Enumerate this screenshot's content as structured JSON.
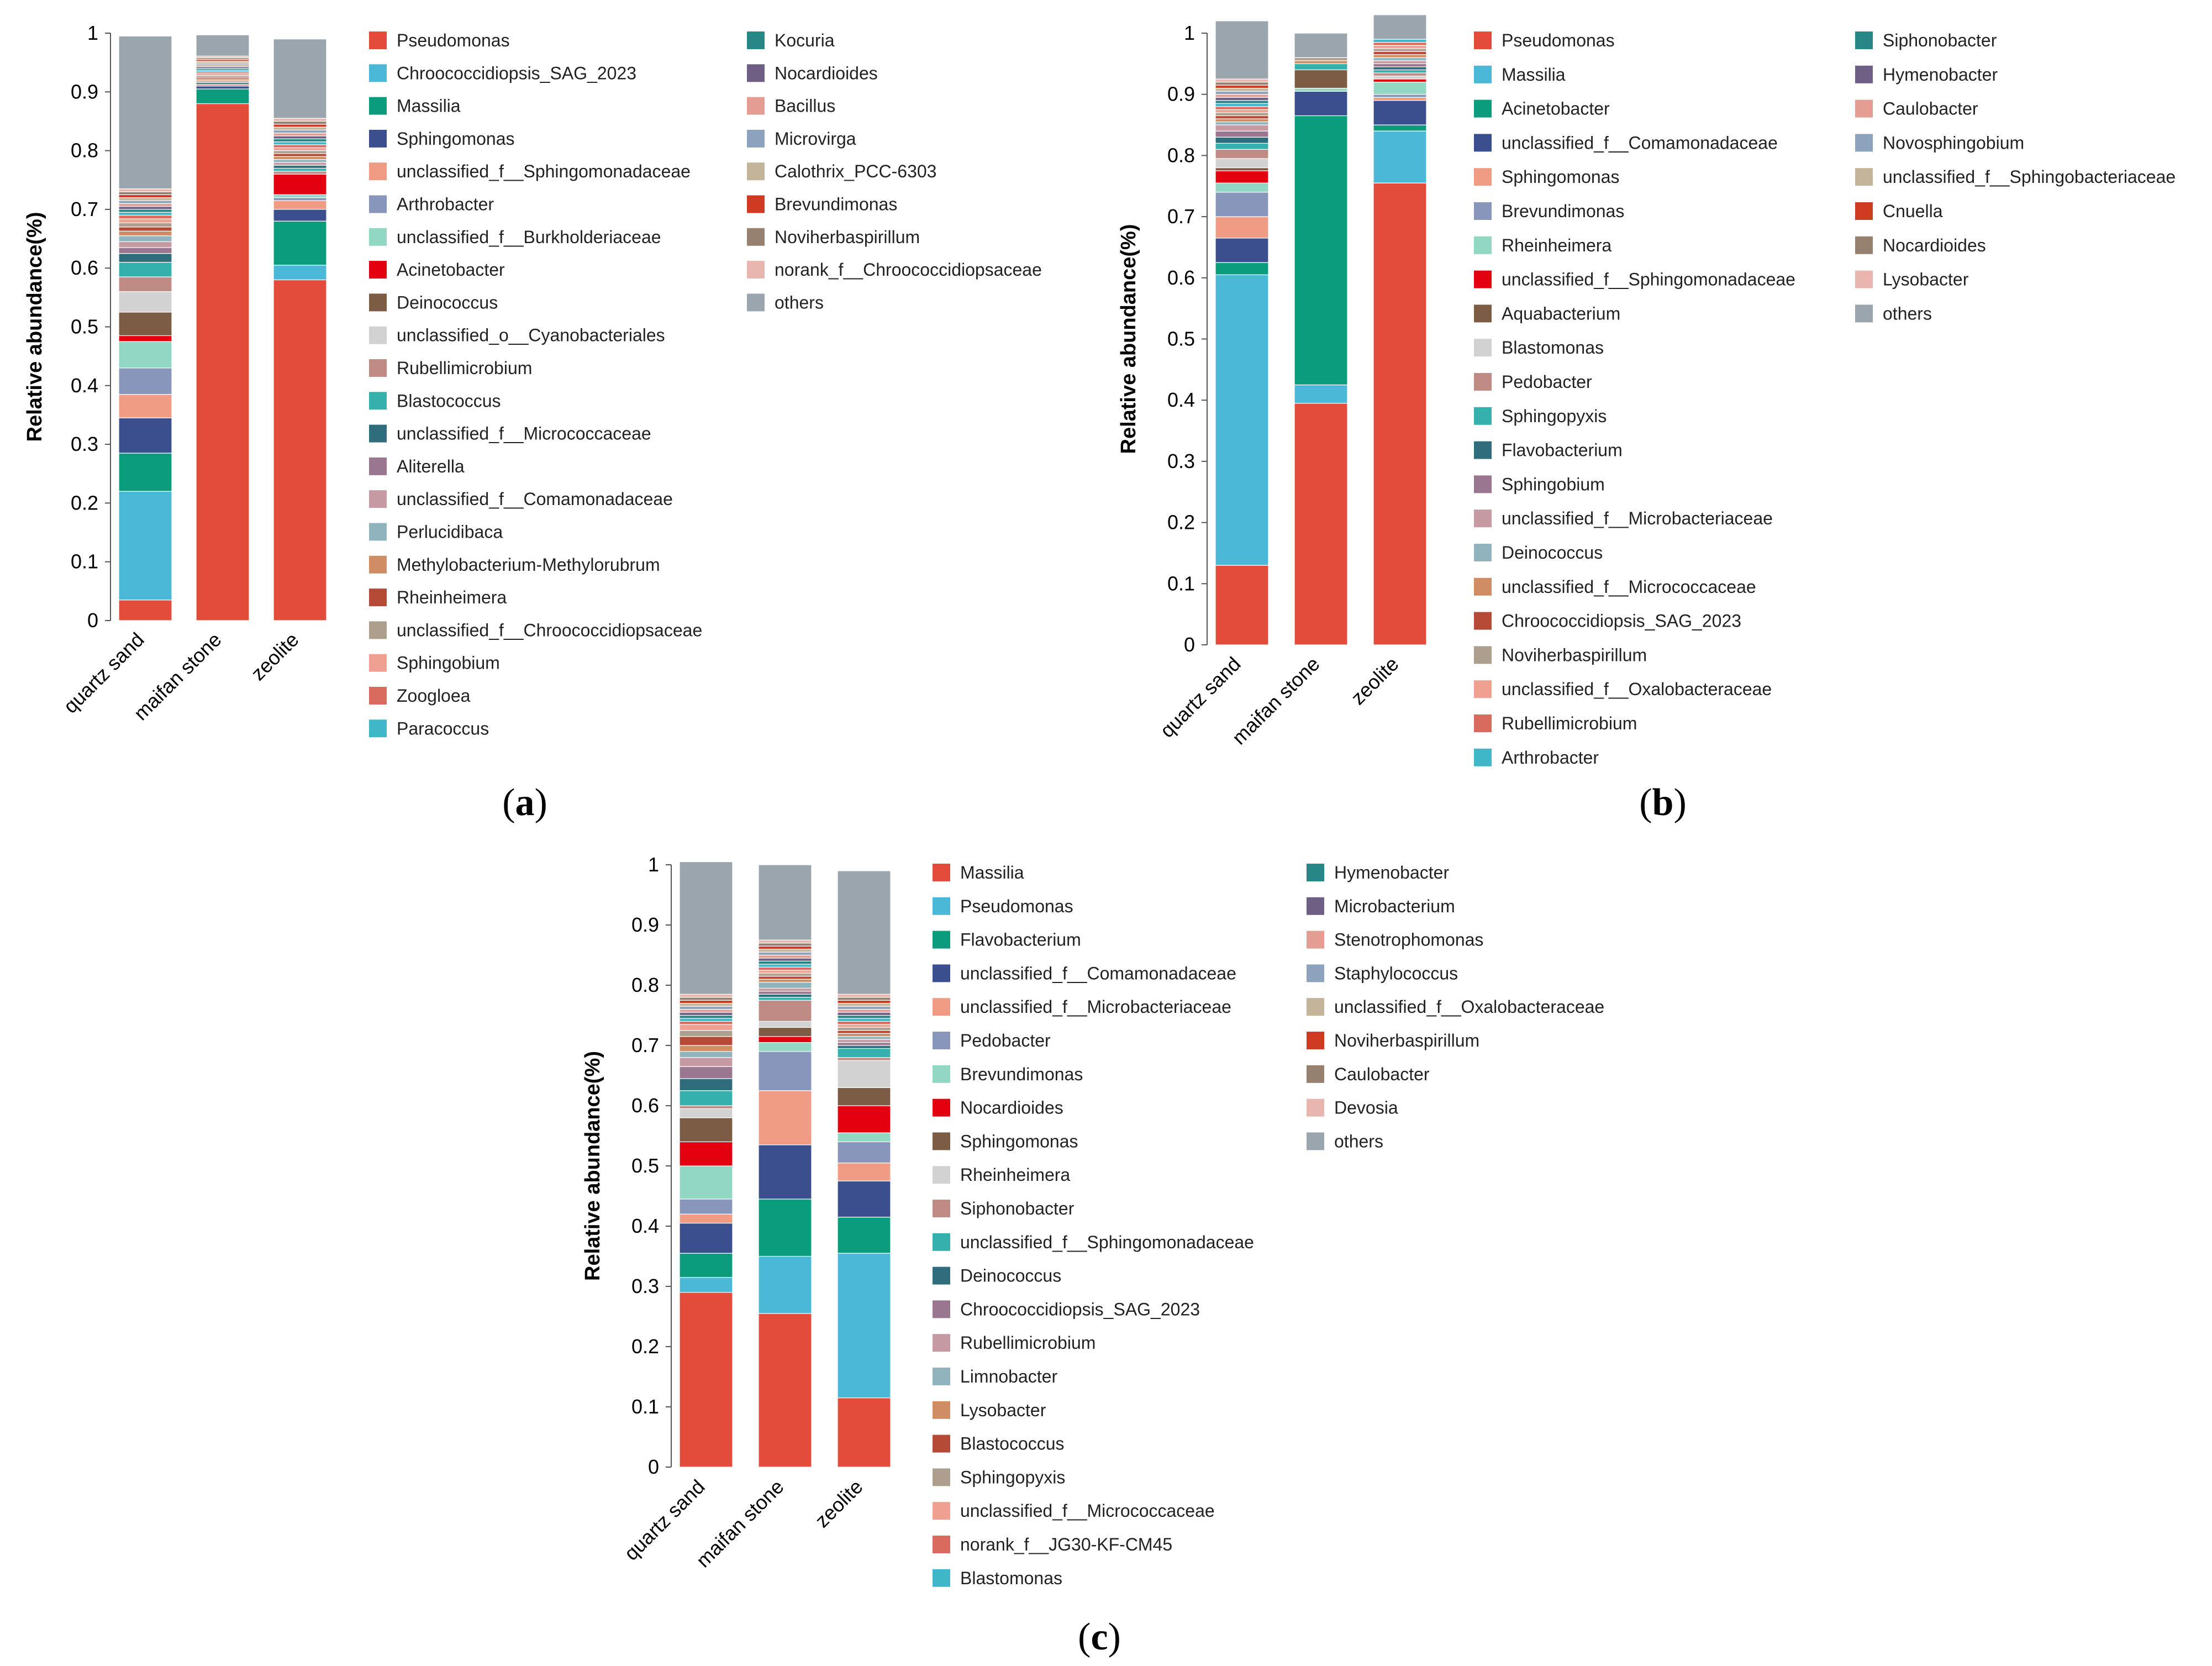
{
  "colors": {
    "others": "#9aa5ae",
    "palette": [
      "#e34c3a",
      "#4bb8d8",
      "#0b9c7e",
      "#3b4f8e",
      "#f09c84",
      "#8796ba",
      "#92d6c4",
      "#e3000f",
      "#7d5c45",
      "#d2d2d2",
      "#c08b84",
      "#35b0ac",
      "#2f6d7c",
      "#9b7690",
      "#c59aa2",
      "#91b3be",
      "#d08c62",
      "#b54a36",
      "#ad9e8e",
      "#f0a090",
      "#d86a5e",
      "#3fb7c8"
    ]
  },
  "chart_data": [
    {
      "panel": "a",
      "caption": "a",
      "type": "bar",
      "stacked": true,
      "ylabel": "Relative abundance(%)",
      "ylim": [
        0,
        1
      ],
      "yticks": [
        "0",
        "0.1",
        "0.2",
        "0.3",
        "0.4",
        "0.5",
        "0.6",
        "0.7",
        "0.8",
        "0.9",
        "1"
      ],
      "categories": [
        "quartz sand",
        "maifan stone",
        "zeolite"
      ],
      "series": [
        {
          "name": "Pseudomonas",
          "color": "#e34c3a",
          "values": [
            0.035,
            0.88,
            0.58
          ]
        },
        {
          "name": "Chroococcidiopsis_SAG_2023",
          "color": "#4bb8d8",
          "values": [
            0.185,
            0.0,
            0.025
          ]
        },
        {
          "name": "Massilia",
          "color": "#0b9c7e",
          "values": [
            0.065,
            0.025,
            0.075
          ]
        },
        {
          "name": "Sphingomonas",
          "color": "#3b4f8e",
          "values": [
            0.06,
            0.005,
            0.02
          ]
        },
        {
          "name": "unclassified_f__Sphingomonadaceae",
          "color": "#f09c84",
          "values": [
            0.04,
            0.0,
            0.015
          ]
        },
        {
          "name": "Arthrobacter",
          "color": "#8796ba",
          "values": [
            0.045,
            0.0,
            0.005
          ]
        },
        {
          "name": "unclassified_f__Burkholderiaceae",
          "color": "#92d6c4",
          "values": [
            0.045,
            0.0,
            0.005
          ]
        },
        {
          "name": "Acinetobacter",
          "color": "#e3000f",
          "values": [
            0.01,
            0.0,
            0.035
          ]
        },
        {
          "name": "Deinococcus",
          "color": "#7d5c45",
          "values": [
            0.04,
            0.0,
            0.0
          ]
        },
        {
          "name": "unclassified_o__Cyanobacteriales",
          "color": "#d2d2d2",
          "values": [
            0.035,
            0.0,
            0.0
          ]
        },
        {
          "name": "Rubellimicrobium",
          "color": "#c08b84",
          "values": [
            0.025,
            0.003,
            0.005
          ]
        },
        {
          "name": "Blastococcus",
          "color": "#35b0ac",
          "values": [
            0.025,
            0.0,
            0.005
          ]
        },
        {
          "name": "unclassified_f__Micrococcaceae",
          "color": "#2f6d7c",
          "values": [
            0.015,
            0.003,
            0.005
          ]
        },
        {
          "name": "Aliterella",
          "color": "#9b7690",
          "values": [
            0.01,
            0.0,
            0.0
          ]
        },
        {
          "name": "unclassified_f__Comamonadaceae",
          "color": "#c59aa2",
          "values": [
            0.01,
            0.003,
            0.005
          ]
        },
        {
          "name": "Perlucidibaca",
          "color": "#91b3be",
          "values": [
            0.01,
            0.0,
            0.005
          ]
        },
        {
          "name": "Methylobacterium-Methylorubrum",
          "color": "#d08c62",
          "values": [
            0.008,
            0.003,
            0.005
          ]
        },
        {
          "name": "Rheinheimera",
          "color": "#b54a36",
          "values": [
            0.007,
            0.003,
            0.005
          ]
        },
        {
          "name": "unclassified_f__Chroococcidiopsaceae",
          "color": "#ad9e8e",
          "values": [
            0.007,
            0.003,
            0.005
          ]
        },
        {
          "name": "Sphingobium",
          "color": "#f0a090",
          "values": [
            0.007,
            0.003,
            0.005
          ]
        },
        {
          "name": "Zoogloea",
          "color": "#d86a5e",
          "values": [
            0.006,
            0.003,
            0.005
          ]
        },
        {
          "name": "Paracoccus",
          "color": "#3fb7c8",
          "values": [
            0.005,
            0.003,
            0.005
          ]
        },
        {
          "name": "Kocuria",
          "color": "#268786",
          "values": [
            0.005,
            0.003,
            0.005
          ]
        },
        {
          "name": "Nocardioides",
          "color": "#6f5f84",
          "values": [
            0.005,
            0.003,
            0.005
          ]
        },
        {
          "name": "Bacillus",
          "color": "#e39d93",
          "values": [
            0.005,
            0.003,
            0.005
          ]
        },
        {
          "name": "Microvirga",
          "color": "#8da3bd",
          "values": [
            0.005,
            0.003,
            0.005
          ]
        },
        {
          "name": "Calothrix_PCC-6303",
          "color": "#c3b49a",
          "values": [
            0.005,
            0.003,
            0.005
          ]
        },
        {
          "name": "Brevundimonas",
          "color": "#cf3b22",
          "values": [
            0.005,
            0.003,
            0.005
          ]
        },
        {
          "name": "Noviherbaspirillum",
          "color": "#96806f",
          "values": [
            0.005,
            0.003,
            0.005
          ]
        },
        {
          "name": "norank_f__Chroococcidiopsaceae",
          "color": "#e8b6ae",
          "values": [
            0.005,
            0.003,
            0.005
          ]
        },
        {
          "name": "others",
          "color": "#9aa5ae",
          "values": [
            0.26,
            0.036,
            0.135
          ]
        }
      ]
    },
    {
      "panel": "b",
      "caption": "b",
      "type": "bar",
      "stacked": true,
      "ylabel": "Relative abundance(%)",
      "ylim": [
        0,
        1
      ],
      "yticks": [
        "0",
        "0.1",
        "0.2",
        "0.3",
        "0.4",
        "0.5",
        "0.6",
        "0.7",
        "0.8",
        "0.9",
        "1"
      ],
      "categories": [
        "quartz sand",
        "maifan stone",
        "zeolite"
      ],
      "series": [
        {
          "name": "Pseudomonas",
          "color": "#e34c3a",
          "values": [
            0.13,
            0.395,
            0.755
          ]
        },
        {
          "name": "Massilia",
          "color": "#4bb8d8",
          "values": [
            0.475,
            0.03,
            0.085
          ]
        },
        {
          "name": "Acinetobacter",
          "color": "#0b9c7e",
          "values": [
            0.02,
            0.44,
            0.01
          ]
        },
        {
          "name": "unclassified_f__Comamonadaceae",
          "color": "#3b4f8e",
          "values": [
            0.04,
            0.04,
            0.04
          ]
        },
        {
          "name": "Sphingomonas",
          "color": "#f09c84",
          "values": [
            0.035,
            0.0,
            0.005
          ]
        },
        {
          "name": "Brevundimonas",
          "color": "#8796ba",
          "values": [
            0.04,
            0.0,
            0.005
          ]
        },
        {
          "name": "Rheinheimera",
          "color": "#92d6c4",
          "values": [
            0.015,
            0.005,
            0.02
          ]
        },
        {
          "name": "unclassified_f__Sphingomonadaceae",
          "color": "#e3000f",
          "values": [
            0.02,
            0.0,
            0.005
          ]
        },
        {
          "name": "Aquabacterium",
          "color": "#7d5c45",
          "values": [
            0.005,
            0.03,
            0.0
          ]
        },
        {
          "name": "Blastomonas",
          "color": "#d2d2d2",
          "values": [
            0.015,
            0.0,
            0.005
          ]
        },
        {
          "name": "Pedobacter",
          "color": "#c08b84",
          "values": [
            0.015,
            0.0,
            0.005
          ]
        },
        {
          "name": "Sphingopyxis",
          "color": "#35b0ac",
          "values": [
            0.01,
            0.01,
            0.005
          ]
        },
        {
          "name": "Flavobacterium",
          "color": "#2f6d7c",
          "values": [
            0.01,
            0.0,
            0.005
          ]
        },
        {
          "name": "Sphingobium",
          "color": "#9b7690",
          "values": [
            0.01,
            0.0,
            0.005
          ]
        },
        {
          "name": "unclassified_f__Microbacteriaceae",
          "color": "#c59aa2",
          "values": [
            0.01,
            0.0,
            0.005
          ]
        },
        {
          "name": "Deinococcus",
          "color": "#91b3be",
          "values": [
            0.005,
            0.0,
            0.005
          ]
        },
        {
          "name": "unclassified_f__Micrococcaceae",
          "color": "#d08c62",
          "values": [
            0.005,
            0.005,
            0.005
          ]
        },
        {
          "name": "Chroococcidiopsis_SAG_2023",
          "color": "#b54a36",
          "values": [
            0.005,
            0.0,
            0.005
          ]
        },
        {
          "name": "Noviherbaspirillum",
          "color": "#ad9e8e",
          "values": [
            0.005,
            0.005,
            0.005
          ]
        },
        {
          "name": "unclassified_f__Oxalobacteraceae",
          "color": "#f0a090",
          "values": [
            0.005,
            0.0,
            0.005
          ]
        },
        {
          "name": "Rubellimicrobium",
          "color": "#d86a5e",
          "values": [
            0.005,
            0.0,
            0.005
          ]
        },
        {
          "name": "Arthrobacter",
          "color": "#3fb7c8",
          "values": [
            0.005,
            0.0,
            0.005
          ]
        },
        {
          "name": "Siphonobacter",
          "color": "#268786",
          "values": [
            0.005,
            0.0,
            0.0
          ]
        },
        {
          "name": "Hymenobacter",
          "color": "#6f5f84",
          "values": [
            0.005,
            0.0,
            0.0
          ]
        },
        {
          "name": "Caulobacter",
          "color": "#e39d93",
          "values": [
            0.005,
            0.0,
            0.0
          ]
        },
        {
          "name": "Novosphingobium",
          "color": "#8da3bd",
          "values": [
            0.005,
            0.0,
            0.0
          ]
        },
        {
          "name": "unclassified_f__Sphingobacteriaceae",
          "color": "#c3b49a",
          "values": [
            0.005,
            0.0,
            0.0
          ]
        },
        {
          "name": "Cnuella",
          "color": "#cf3b22",
          "values": [
            0.005,
            0.0,
            0.0
          ]
        },
        {
          "name": "Nocardioides",
          "color": "#96806f",
          "values": [
            0.005,
            0.0,
            0.0
          ]
        },
        {
          "name": "Lysobacter",
          "color": "#e8b6ae",
          "values": [
            0.005,
            0.0,
            0.0
          ]
        },
        {
          "name": "others",
          "color": "#9aa5ae",
          "values": [
            0.095,
            0.04,
            0.04
          ]
        }
      ]
    },
    {
      "panel": "c",
      "caption": "c",
      "type": "bar",
      "stacked": true,
      "ylabel": "Relative abundance(%)",
      "ylim": [
        0,
        1
      ],
      "yticks": [
        "0",
        "0.1",
        "0.2",
        "0.3",
        "0.4",
        "0.5",
        "0.6",
        "0.7",
        "0.8",
        "0.9",
        "1"
      ],
      "categories": [
        "quartz sand",
        "maifan stone",
        "zeolite"
      ],
      "series": [
        {
          "name": "Massilia",
          "color": "#e34c3a",
          "values": [
            0.29,
            0.255,
            0.115
          ]
        },
        {
          "name": "Pseudomonas",
          "color": "#4bb8d8",
          "values": [
            0.025,
            0.095,
            0.24
          ]
        },
        {
          "name": "Flavobacterium",
          "color": "#0b9c7e",
          "values": [
            0.04,
            0.095,
            0.06
          ]
        },
        {
          "name": "unclassified_f__Comamonadaceae",
          "color": "#3b4f8e",
          "values": [
            0.05,
            0.09,
            0.06
          ]
        },
        {
          "name": "unclassified_f__Microbacteriaceae",
          "color": "#f09c84",
          "values": [
            0.015,
            0.09,
            0.03
          ]
        },
        {
          "name": "Pedobacter",
          "color": "#8796ba",
          "values": [
            0.025,
            0.065,
            0.035
          ]
        },
        {
          "name": "Brevundimonas",
          "color": "#92d6c4",
          "values": [
            0.055,
            0.015,
            0.015
          ]
        },
        {
          "name": "Nocardioides",
          "color": "#e3000f",
          "values": [
            0.04,
            0.01,
            0.045
          ]
        },
        {
          "name": "Sphingomonas",
          "color": "#7d5c45",
          "values": [
            0.04,
            0.015,
            0.03
          ]
        },
        {
          "name": "Rheinheimera",
          "color": "#d2d2d2",
          "values": [
            0.015,
            0.01,
            0.045
          ]
        },
        {
          "name": "Siphonobacter",
          "color": "#c08b84",
          "values": [
            0.005,
            0.035,
            0.005
          ]
        },
        {
          "name": "unclassified_f__Sphingomonadaceae",
          "color": "#35b0ac",
          "values": [
            0.025,
            0.005,
            0.015
          ]
        },
        {
          "name": "Deinococcus",
          "color": "#2f6d7c",
          "values": [
            0.02,
            0.005,
            0.005
          ]
        },
        {
          "name": "Chroococcidiopsis_SAG_2023",
          "color": "#9b7690",
          "values": [
            0.02,
            0.005,
            0.005
          ]
        },
        {
          "name": "Rubellimicrobium",
          "color": "#c59aa2",
          "values": [
            0.015,
            0.005,
            0.005
          ]
        },
        {
          "name": "Limnobacter",
          "color": "#91b3be",
          "values": [
            0.01,
            0.01,
            0.005
          ]
        },
        {
          "name": "Lysobacter",
          "color": "#d08c62",
          "values": [
            0.01,
            0.005,
            0.005
          ]
        },
        {
          "name": "Blastococcus",
          "color": "#b54a36",
          "values": [
            0.015,
            0.005,
            0.005
          ]
        },
        {
          "name": "Sphingopyxis",
          "color": "#ad9e8e",
          "values": [
            0.01,
            0.005,
            0.005
          ]
        },
        {
          "name": "unclassified_f__Micrococcaceae",
          "color": "#f0a090",
          "values": [
            0.01,
            0.005,
            0.005
          ]
        },
        {
          "name": "norank_f__JG30-KF-CM45",
          "color": "#d86a5e",
          "values": [
            0.005,
            0.005,
            0.005
          ]
        },
        {
          "name": "Blastomonas",
          "color": "#3fb7c8",
          "values": [
            0.005,
            0.005,
            0.005
          ]
        },
        {
          "name": "Hymenobacter",
          "color": "#268786",
          "values": [
            0.005,
            0.005,
            0.005
          ]
        },
        {
          "name": "Microbacterium",
          "color": "#6f5f84",
          "values": [
            0.005,
            0.005,
            0.005
          ]
        },
        {
          "name": "Stenotrophomonas",
          "color": "#e39d93",
          "values": [
            0.005,
            0.005,
            0.005
          ]
        },
        {
          "name": "Staphylococcus",
          "color": "#8da3bd",
          "values": [
            0.005,
            0.005,
            0.005
          ]
        },
        {
          "name": "unclassified_f__Oxalobacteraceae",
          "color": "#c3b49a",
          "values": [
            0.005,
            0.005,
            0.005
          ]
        },
        {
          "name": "Noviherbaspirillum",
          "color": "#cf3b22",
          "values": [
            0.005,
            0.005,
            0.005
          ]
        },
        {
          "name": "Caulobacter",
          "color": "#96806f",
          "values": [
            0.005,
            0.005,
            0.005
          ]
        },
        {
          "name": "Devosia",
          "color": "#e8b6ae",
          "values": [
            0.005,
            0.005,
            0.005
          ]
        },
        {
          "name": "others",
          "color": "#9aa5ae",
          "values": [
            0.22,
            0.125,
            0.205
          ]
        }
      ]
    }
  ]
}
